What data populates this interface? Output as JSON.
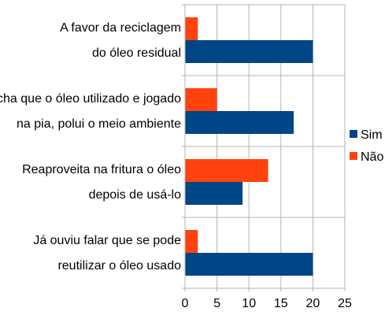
{
  "chart_data": {
    "type": "bar",
    "orientation": "horizontal",
    "title": "",
    "xlabel": "",
    "ylabel": "",
    "categories": [
      [
        "A favor da reciclagem",
        "do óleo residual"
      ],
      [
        "Acha que o óleo utilizado e jogado",
        "na pia, polui o meio ambiente"
      ],
      [
        "Reaproveita na fritura o óleo",
        "depois de usá-lo"
      ],
      [
        "Já ouviu falar que se pode",
        "reutilizar o óleo usado"
      ]
    ],
    "series": [
      {
        "name": "Sim",
        "color": "#004586",
        "values": [
          20,
          17,
          9,
          20
        ]
      },
      {
        "name": "Não",
        "color": "#ff420e",
        "values": [
          2,
          5,
          13,
          2
        ]
      }
    ],
    "xlim": [
      0,
      25
    ],
    "xticks": [
      "0",
      "5",
      "10",
      "15",
      "20",
      "25"
    ],
    "grid": true,
    "legend_position": "right"
  }
}
